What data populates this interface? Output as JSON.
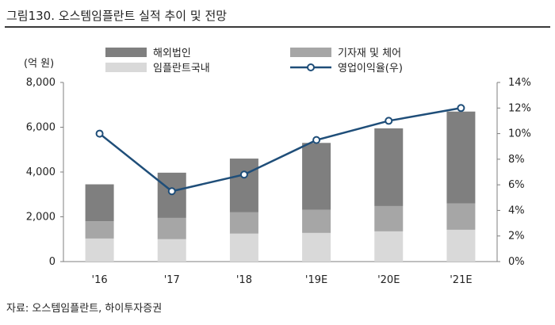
{
  "figure_title": "그림130. 오스템임플란트 실적 추이 및 전망",
  "source": "자료: 오스템임플란트, 하이투자증권",
  "chart_data": {
    "type": "bar",
    "stacked": true,
    "unit_label": "(억 원)",
    "categories": [
      "'16",
      "'17",
      "'18",
      "'19E",
      "'20E",
      "'21E"
    ],
    "series": [
      {
        "name": "임플란트국내",
        "kind": "bar",
        "axis": "left",
        "color": "#d9d9d9",
        "values": [
          1030,
          1000,
          1250,
          1280,
          1350,
          1420
        ]
      },
      {
        "name": "기자재 및 체어",
        "kind": "bar",
        "axis": "left",
        "color": "#a6a6a6",
        "values": [
          770,
          950,
          950,
          1030,
          1130,
          1180
        ]
      },
      {
        "name": "해외법인",
        "kind": "bar",
        "axis": "left",
        "color": "#7f7f7f",
        "values": [
          1650,
          2020,
          2400,
          2990,
          3470,
          4100
        ]
      },
      {
        "name": "영업이익율(우)",
        "kind": "line",
        "axis": "right",
        "color": "#1f4e79",
        "values": [
          10.0,
          5.5,
          6.8,
          9.5,
          11.0,
          12.0
        ]
      }
    ],
    "left_axis": {
      "min": 0,
      "max": 8000,
      "ticks": [
        "0",
        "2,000",
        "4,000",
        "6,000",
        "8,000"
      ]
    },
    "right_axis": {
      "min": 0,
      "max": 14,
      "ticks": [
        "0%",
        "2%",
        "4%",
        "6%",
        "8%",
        "10%",
        "12%",
        "14%"
      ]
    },
    "legend_placement": "top",
    "grid": false
  }
}
